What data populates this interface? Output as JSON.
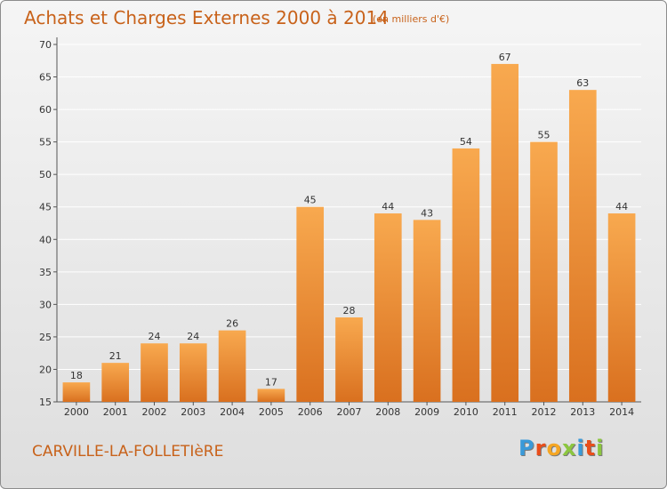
{
  "header": {
    "title": "Achats et Charges Externes 2000 à 2014",
    "subtitle": "(en milliers d'€)"
  },
  "footer": {
    "place": "CARVILLE-LA-FOLLETIèRE",
    "logo_letters": [
      "P",
      "r",
      "o",
      "x",
      "i",
      "t",
      "i"
    ],
    "logo_colors": [
      "#3a9ad9",
      "#e94e1b",
      "#f5a623",
      "#8cc63f",
      "#3a9ad9",
      "#e94e1b",
      "#8cc63f"
    ]
  },
  "colors": {
    "bar_light": "#f8a94f",
    "bar_dark": "#d9701f",
    "grid": "#ffffff",
    "text_accent": "#c8621a"
  },
  "chart_data": {
    "type": "bar",
    "categories": [
      "2000",
      "2001",
      "2002",
      "2003",
      "2004",
      "2005",
      "2006",
      "2007",
      "2008",
      "2009",
      "2010",
      "2011",
      "2012",
      "2013",
      "2014"
    ],
    "values": [
      18,
      21,
      24,
      24,
      26,
      17,
      45,
      28,
      44,
      43,
      54,
      67,
      55,
      63,
      44
    ],
    "ylim": [
      15,
      70
    ],
    "yticks": [
      15,
      20,
      25,
      30,
      35,
      40,
      45,
      50,
      55,
      60,
      65,
      70
    ],
    "grid": true,
    "legend": "none"
  }
}
